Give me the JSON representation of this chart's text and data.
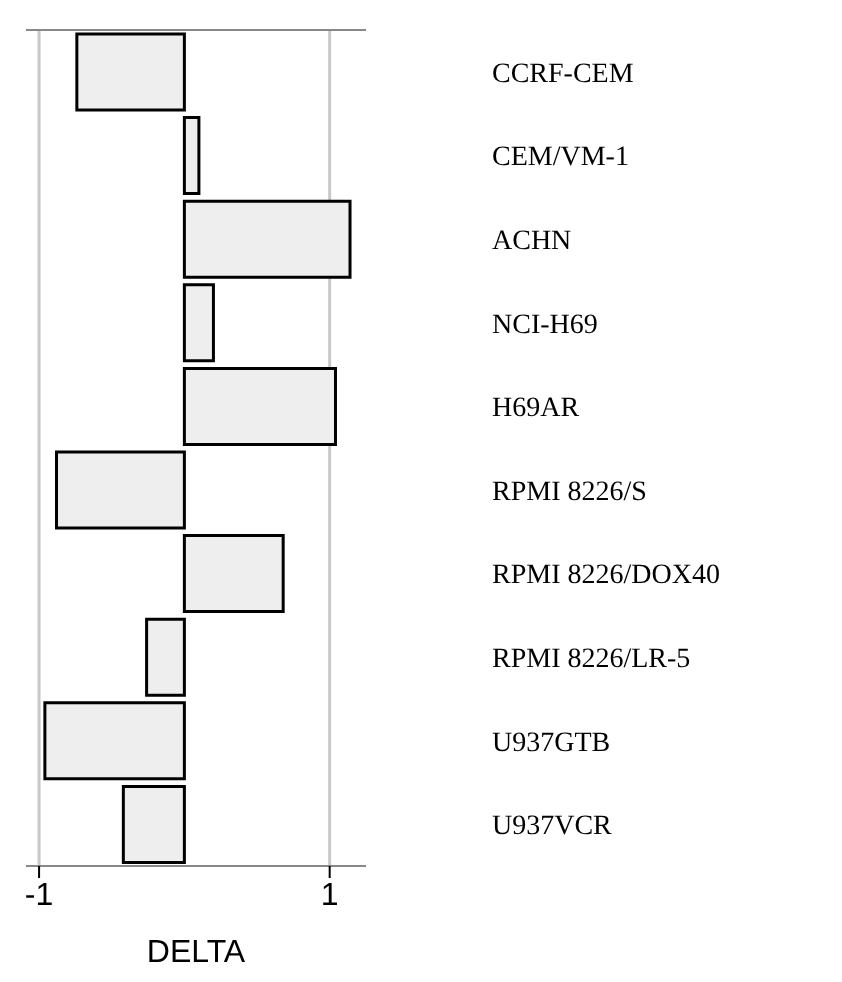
{
  "chart_data": {
    "type": "bar",
    "orientation": "horizontal",
    "xlabel": "DELTA",
    "categories": [
      "CCRF-CEM",
      "CEM/VM-1",
      "ACHN",
      "NCI-H69",
      "H69AR",
      "RPMI 8226/S",
      "RPMI 8226/DOX40",
      "RPMI 8226/LR-5",
      "U937GTB",
      "U937VCR"
    ],
    "values": [
      -0.74,
      0.1,
      1.14,
      0.2,
      1.04,
      -0.88,
      0.68,
      -0.26,
      -0.96,
      -0.42
    ],
    "color": "#eeeeee",
    "xlim": [
      -1.09,
      1.25
    ],
    "xticks": [
      -1,
      1
    ],
    "grid": "x"
  }
}
